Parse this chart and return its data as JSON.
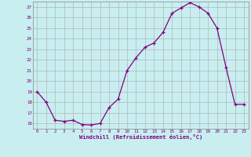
{
  "x": [
    0,
    1,
    2,
    3,
    4,
    5,
    6,
    7,
    8,
    9,
    10,
    11,
    12,
    13,
    14,
    15,
    16,
    17,
    18,
    19,
    20,
    21,
    22,
    23
  ],
  "y": [
    19,
    18,
    16.3,
    16.2,
    16.3,
    15.9,
    15.85,
    16.0,
    17.5,
    18.3,
    21.0,
    22.2,
    23.2,
    23.6,
    24.6,
    26.4,
    26.9,
    27.4,
    27.0,
    26.4,
    25.0,
    21.3,
    17.8,
    17.8
  ],
  "line_color": "#800080",
  "marker": "+",
  "marker_color": "#800080",
  "bg_color": "#c8eef0",
  "grid_color": "#aaaaaa",
  "xlabel": "Windchill (Refroidissement éolien,°C)",
  "xlabel_color": "#800080",
  "tick_color": "#800080",
  "ylim": [
    15.5,
    27.5
  ],
  "xlim": [
    -0.5,
    23.5
  ],
  "yticks": [
    16,
    17,
    18,
    19,
    20,
    21,
    22,
    23,
    24,
    25,
    26,
    27
  ],
  "xticks": [
    0,
    1,
    2,
    3,
    4,
    5,
    6,
    7,
    8,
    9,
    10,
    11,
    12,
    13,
    14,
    15,
    16,
    17,
    18,
    19,
    20,
    21,
    22,
    23
  ]
}
